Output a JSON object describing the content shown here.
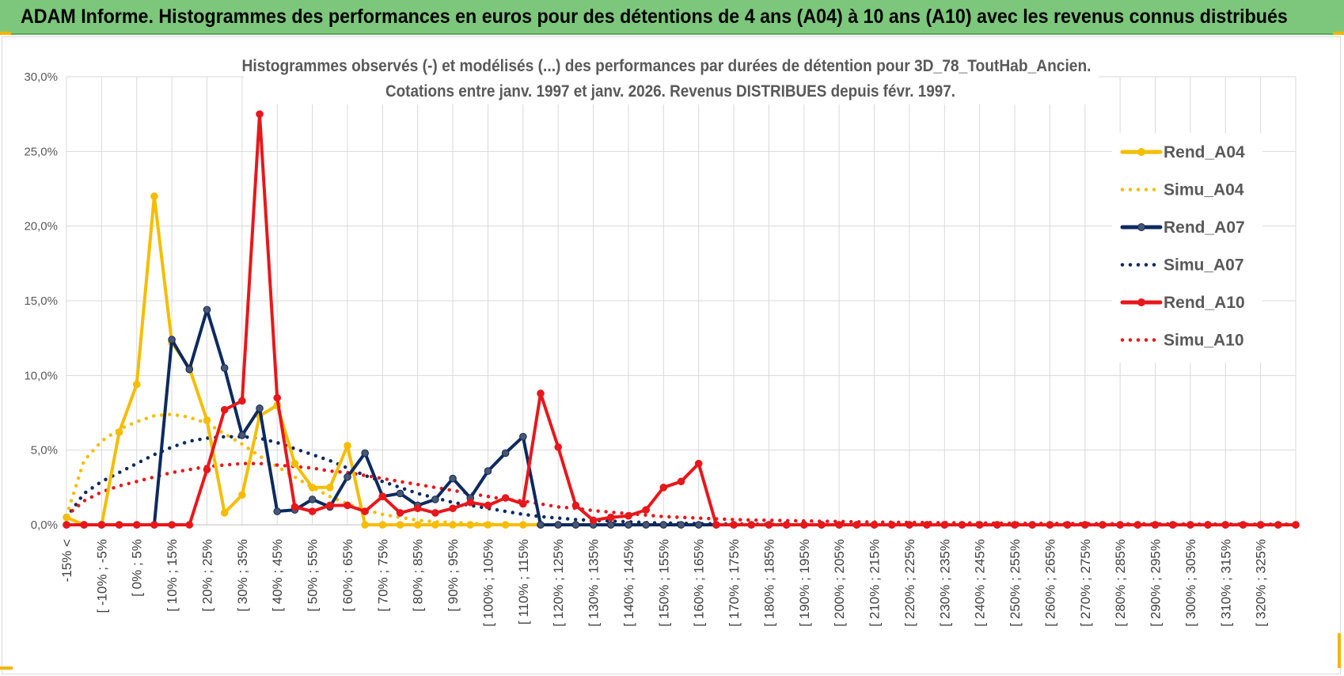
{
  "banner": {
    "title": "ADAM Informe. Histogrammes des performances en euros pour des détentions de 4 ans (A04) à 10 ans (A10) avec les revenus connus distribués"
  },
  "colors": {
    "banner_bg": "#7cc77b",
    "a04": "#f5bd00",
    "a07": "#0d2a5f",
    "a10": "#e8171b",
    "grid": "#d9d9d9"
  },
  "chart_data": {
    "type": "line",
    "title_line1": "Histogrammes observés (-) et modélisés (...) des performances par durées de détention pour 3D_78_ToutHab_Ancien.",
    "title_line2": "Cotations entre janv. 1997 et janv. 2026. Revenus DISTRIBUES depuis févr. 1997.",
    "ylim": [
      0,
      30
    ],
    "y_ticks": [
      "0,0%",
      "5,0%",
      "10,0%",
      "15,0%",
      "20,0%",
      "25,0%",
      "30,0%"
    ],
    "grid": true,
    "legend_position": "right",
    "x_labels": [
      "-15% <",
      "[ -10% ; -5%",
      "[ 0% ; 5%",
      "[ 10% ; 15%",
      "[ 20% ; 25%",
      "[ 30% ; 35%",
      "[ 40% ; 45%",
      "[ 50% ; 55%",
      "[ 60% ; 65%",
      "[ 70% ; 75%",
      "[ 80% ; 85%",
      "[ 90% ; 95%",
      "[ 100% ; 105%",
      "[ 110% ; 115%",
      "[ 120% ; 125%",
      "[ 130% ; 135%",
      "[ 140% ; 145%",
      "[ 150% ; 155%",
      "[ 160% ; 165%",
      "[ 170% ; 175%",
      "[ 180% ; 185%",
      "[ 190% ; 195%",
      "[ 200% ; 205%",
      "[ 210% ; 215%",
      "[ 220% ; 225%",
      "[ 230% ; 235%",
      "[ 240% ; 245%",
      "[ 250% ; 255%",
      "[ 260% ; 265%",
      "[ 270% ; 275%",
      "[ 280% ; 285%",
      "[ 290% ; 295%",
      "[ 300% ; 305%",
      "[ 310% ; 315%",
      "[ 320% ; 325%"
    ],
    "x_label_every": 2,
    "n_points": 71,
    "series": [
      {
        "name": "Rend_A04",
        "style": "solid",
        "color": "#f5bd00",
        "markers": true,
        "values": [
          0.5,
          0,
          0,
          6.2,
          9.4,
          22,
          12.2,
          10.5,
          7,
          0.8,
          2,
          7.3,
          8,
          4.1,
          2.5,
          2.5,
          5.3,
          0,
          0,
          0,
          0,
          0,
          0,
          0,
          0,
          0,
          0,
          0,
          0,
          0,
          0,
          0,
          0,
          0,
          0,
          0,
          0,
          0,
          0,
          0,
          0,
          0,
          0,
          0,
          0,
          0,
          0,
          0,
          0,
          0,
          0,
          0,
          0,
          0,
          0,
          0,
          0,
          0,
          0,
          0,
          0,
          0,
          0,
          0,
          0,
          0,
          0,
          0,
          0,
          0,
          0
        ]
      },
      {
        "name": "Simu_A04",
        "style": "dotted",
        "color": "#f5bd00",
        "markers": false,
        "values": [
          0.6,
          4.3,
          5.6,
          6.4,
          6.9,
          7.3,
          7.4,
          7.2,
          6.8,
          6.1,
          5.4,
          4.6,
          3.9,
          3.2,
          2.5,
          1.9,
          1.4,
          1,
          0.7,
          0.5,
          0.3,
          0.2,
          0.15,
          0.1,
          0.05,
          0,
          0,
          0,
          0,
          0,
          0,
          0,
          0,
          0,
          0,
          0,
          0,
          0,
          0,
          0,
          0,
          0,
          0,
          0,
          0,
          0,
          0,
          0,
          0,
          0,
          0,
          0,
          0,
          0,
          0,
          0,
          0,
          0,
          0,
          0,
          0,
          0,
          0,
          0,
          0,
          0,
          0,
          0,
          0,
          0,
          0
        ]
      },
      {
        "name": "Rend_A07",
        "style": "solid",
        "color": "#0d2a5f",
        "markers": true,
        "values": [
          0,
          0,
          0,
          0,
          0,
          0,
          12.4,
          10.4,
          14.4,
          10.5,
          6,
          7.8,
          0.9,
          1,
          1.7,
          1.2,
          3.2,
          4.8,
          1.9,
          2.1,
          1.3,
          1.7,
          3.1,
          1.8,
          3.6,
          4.8,
          5.9,
          0,
          0,
          0,
          0,
          0,
          0,
          0,
          0,
          0,
          0,
          0,
          0,
          0,
          0,
          0,
          0,
          0,
          0,
          0,
          0,
          0,
          0,
          0,
          0,
          0,
          0,
          0,
          0,
          0,
          0,
          0,
          0,
          0,
          0,
          0,
          0,
          0,
          0,
          0,
          0,
          0,
          0,
          0,
          0
        ]
      },
      {
        "name": "Simu_A07",
        "style": "dotted",
        "color": "#0d2a5f",
        "markers": false,
        "values": [
          0.5,
          2.1,
          2.9,
          3.5,
          4.1,
          4.7,
          5.2,
          5.6,
          5.8,
          5.9,
          5.9,
          5.8,
          5.5,
          5.1,
          4.7,
          4.3,
          3.8,
          3.3,
          2.9,
          2.5,
          2.1,
          1.8,
          1.5,
          1.3,
          1.1,
          0.9,
          0.7,
          0.55,
          0.45,
          0.35,
          0.3,
          0.25,
          0.2,
          0.15,
          0.12,
          0.1,
          0.08,
          0.06,
          0.05,
          0.04,
          0.03,
          0.02,
          0.01,
          0,
          0,
          0,
          0,
          0,
          0,
          0,
          0,
          0,
          0,
          0,
          0,
          0,
          0,
          0,
          0,
          0,
          0,
          0,
          0,
          0,
          0,
          0,
          0,
          0,
          0,
          0,
          0
        ]
      },
      {
        "name": "Rend_A10",
        "style": "solid",
        "color": "#e8171b",
        "markers": true,
        "values": [
          0,
          0,
          0,
          0,
          0,
          0,
          0,
          0,
          3.7,
          7.7,
          8.3,
          27.5,
          8.5,
          1.2,
          0.9,
          1.3,
          1.3,
          0.9,
          1.9,
          0.8,
          1.1,
          0.8,
          1.1,
          1.5,
          1.3,
          1.8,
          1.4,
          8.8,
          5.2,
          1.3,
          0.3,
          0.5,
          0.6,
          1,
          2.5,
          2.9,
          4.1,
          0,
          0,
          0,
          0,
          0,
          0,
          0,
          0,
          0,
          0,
          0,
          0,
          0,
          0,
          0,
          0,
          0,
          0,
          0,
          0,
          0,
          0,
          0,
          0,
          0,
          0,
          0,
          0,
          0,
          0,
          0,
          0,
          0,
          0
        ]
      },
      {
        "name": "Simu_A10",
        "style": "dotted",
        "color": "#e8171b",
        "markers": false,
        "values": [
          0.6,
          1.6,
          2.2,
          2.6,
          2.9,
          3.2,
          3.5,
          3.7,
          3.9,
          4,
          4.1,
          4.1,
          4,
          3.9,
          3.8,
          3.6,
          3.5,
          3.3,
          3.1,
          2.9,
          2.7,
          2.5,
          2.3,
          2.1,
          1.9,
          1.7,
          1.6,
          1.4,
          1.2,
          1.1,
          0.95,
          0.85,
          0.75,
          0.65,
          0.55,
          0.5,
          0.45,
          0.4,
          0.35,
          0.32,
          0.3,
          0.28,
          0.26,
          0.24,
          0.22,
          0.2,
          0.18,
          0.17,
          0.16,
          0.15,
          0.14,
          0.13,
          0.12,
          0.11,
          0.1,
          0.1,
          0.09,
          0.09,
          0.08,
          0.08,
          0.07,
          0.07,
          0.06,
          0.06,
          0.05,
          0.05,
          0.05,
          0.04,
          0.04,
          0.04,
          0.04
        ]
      }
    ]
  }
}
